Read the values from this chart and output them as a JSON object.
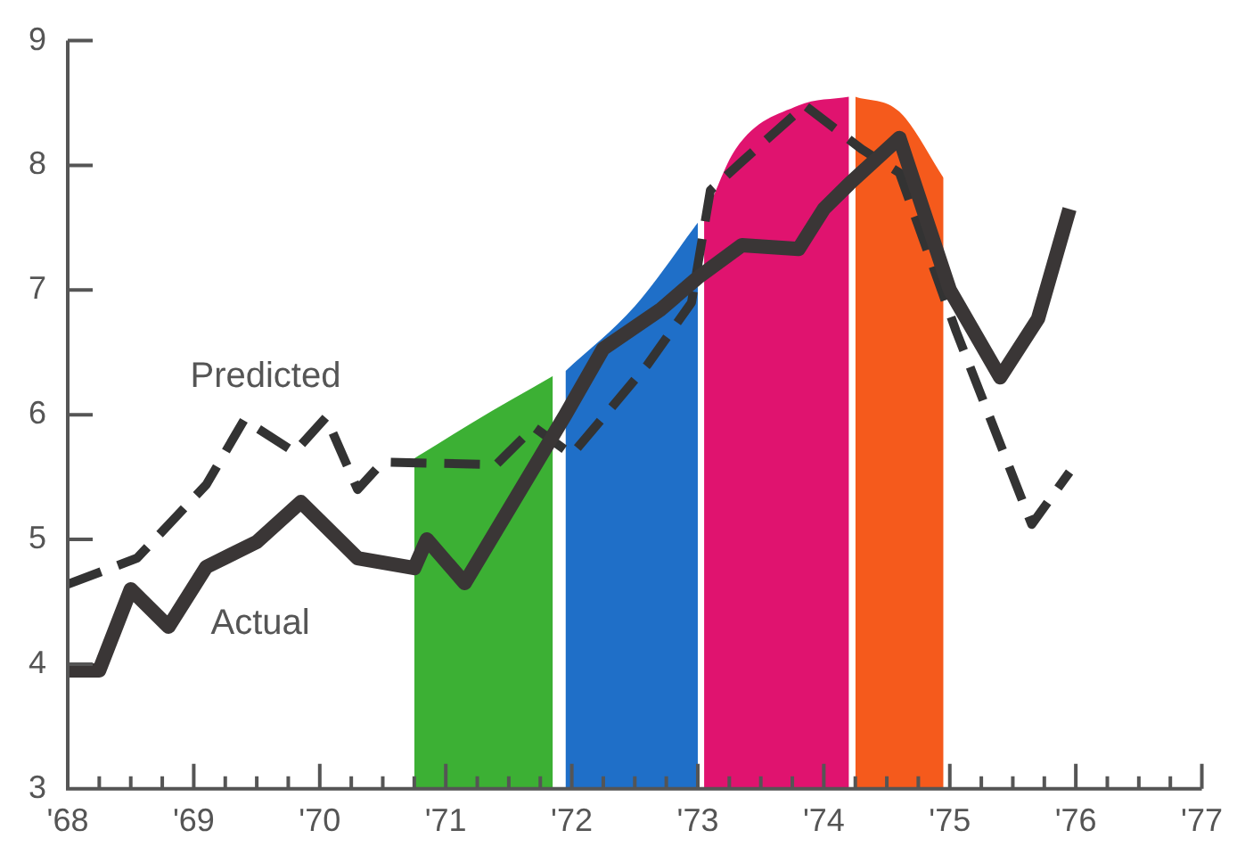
{
  "chart_data": {
    "type": "line",
    "xlim": [
      1968,
      1977
    ],
    "ylim": [
      3,
      9
    ],
    "xticks": [
      {
        "value": 1968,
        "label": "'68"
      },
      {
        "value": 1968.25,
        "label": null
      },
      {
        "value": 1968.5,
        "label": null
      },
      {
        "value": 1968.75,
        "label": null
      },
      {
        "value": 1969,
        "label": "'69"
      },
      {
        "value": 1969.25,
        "label": null
      },
      {
        "value": 1969.5,
        "label": null
      },
      {
        "value": 1969.75,
        "label": null
      },
      {
        "value": 1970,
        "label": "'70"
      },
      {
        "value": 1970.25,
        "label": null
      },
      {
        "value": 1970.5,
        "label": null
      },
      {
        "value": 1970.75,
        "label": null
      },
      {
        "value": 1971,
        "label": "'71"
      },
      {
        "value": 1971.25,
        "label": null
      },
      {
        "value": 1971.5,
        "label": null
      },
      {
        "value": 1971.75,
        "label": null
      },
      {
        "value": 1972,
        "label": "'72"
      },
      {
        "value": 1972.25,
        "label": null
      },
      {
        "value": 1972.5,
        "label": null
      },
      {
        "value": 1972.75,
        "label": null
      },
      {
        "value": 1973,
        "label": "'73"
      },
      {
        "value": 1973.25,
        "label": null
      },
      {
        "value": 1973.5,
        "label": null
      },
      {
        "value": 1973.75,
        "label": null
      },
      {
        "value": 1974,
        "label": "'74"
      },
      {
        "value": 1974.25,
        "label": null
      },
      {
        "value": 1974.5,
        "label": null
      },
      {
        "value": 1974.75,
        "label": null
      },
      {
        "value": 1975,
        "label": "'75"
      },
      {
        "value": 1975.25,
        "label": null
      },
      {
        "value": 1975.5,
        "label": null
      },
      {
        "value": 1975.75,
        "label": null
      },
      {
        "value": 1976,
        "label": "'76"
      },
      {
        "value": 1976.25,
        "label": null
      },
      {
        "value": 1976.5,
        "label": null
      },
      {
        "value": 1976.75,
        "label": null
      },
      {
        "value": 1977,
        "label": "'77"
      }
    ],
    "yticks": [
      3,
      4,
      5,
      6,
      7,
      8,
      9
    ],
    "grid": false,
    "legend": false,
    "marker": "none",
    "series": [
      {
        "type": "area",
        "color": "#3cb034",
        "x": [
          1970.75,
          1971.2,
          1971.85
        ],
        "values": [
          5.65,
          5.93,
          6.31
        ]
      },
      {
        "type": "area",
        "color": "#1f6fc8",
        "x": [
          1971.95,
          1972.5,
          1973.0
        ],
        "values": [
          6.35,
          6.87,
          7.54
        ]
      },
      {
        "type": "area",
        "color": "#e0136f",
        "x": [
          1973.05,
          1973.3,
          1973.8,
          1974.2
        ],
        "values": [
          7.57,
          8.13,
          8.48,
          8.55
        ]
      },
      {
        "type": "area",
        "color": "#f55a1c",
        "x": [
          1974.25,
          1974.6,
          1974.95
        ],
        "values": [
          8.55,
          8.43,
          7.9
        ]
      },
      {
        "name": "Actual",
        "color": "#3a3636",
        "line_style": "solid",
        "x": [
          1968,
          1968.25,
          1968.5,
          1968.8,
          1969.1,
          1969.5,
          1969.85,
          1970.3,
          1970.75,
          1970.85,
          1971.15,
          1971.95,
          1972.25,
          1972.7,
          1973.0,
          1973.35,
          1973.8,
          1974.0,
          1974.2,
          1974.6,
          1975.0,
          1975.4,
          1975.7,
          1975.95
        ],
        "values": [
          3.95,
          3.95,
          4.6,
          4.3,
          4.78,
          4.98,
          5.3,
          4.85,
          4.77,
          5.0,
          4.65,
          6.0,
          6.53,
          6.84,
          7.1,
          7.36,
          7.33,
          7.65,
          7.85,
          8.22,
          7.0,
          6.3,
          6.77,
          7.65
        ]
      },
      {
        "name": "Predicted",
        "color": "#333333",
        "line_style": "dashed",
        "x": [
          1968,
          1968.55,
          1969.1,
          1969.4,
          1969.8,
          1970.05,
          1970.3,
          1970.5,
          1971.4,
          1971.7,
          1972.0,
          1972.6,
          1972.95,
          1973.1,
          1973.35,
          1973.85,
          1974.3,
          1974.6,
          1975.05,
          1975.65,
          1975.95
        ],
        "values": [
          4.64,
          4.85,
          5.44,
          5.96,
          5.7,
          5.98,
          5.4,
          5.62,
          5.6,
          5.9,
          5.68,
          6.4,
          6.9,
          7.8,
          8.03,
          8.48,
          8.13,
          7.94,
          6.67,
          5.12,
          5.54
        ]
      }
    ]
  }
}
